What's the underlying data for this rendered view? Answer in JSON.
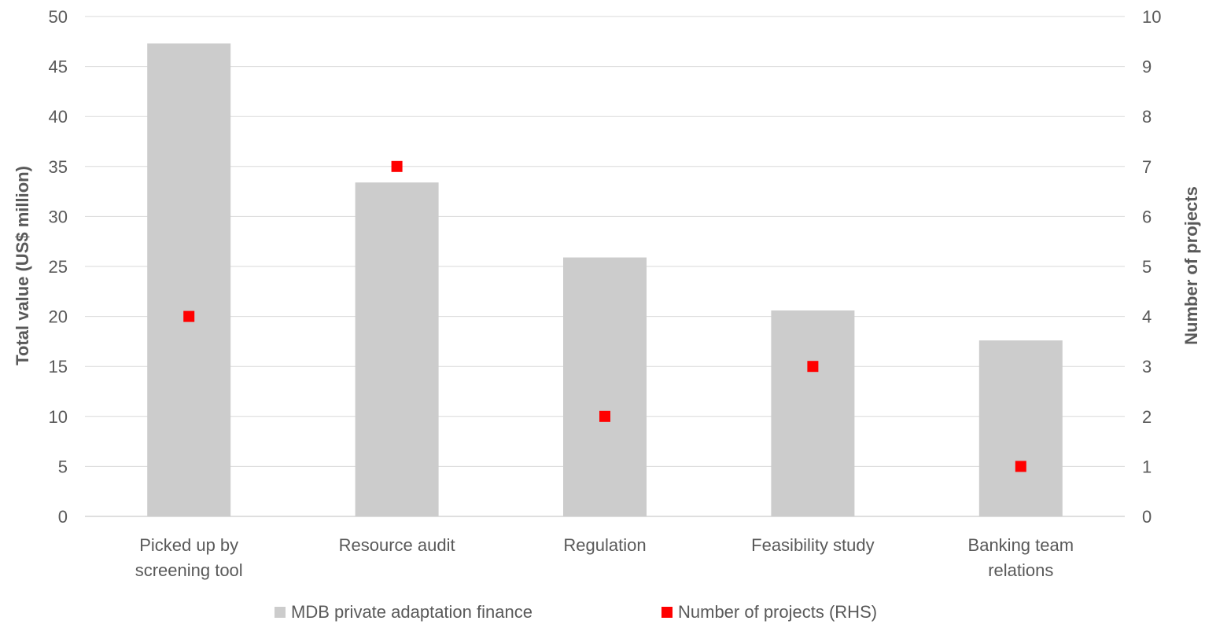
{
  "chart_data": {
    "type": "bar",
    "categories": [
      [
        "Picked up by",
        "screening tool"
      ],
      [
        "Resource audit"
      ],
      [
        "Regulation"
      ],
      [
        "Feasibility study"
      ],
      [
        "Banking team",
        "relations"
      ]
    ],
    "series": [
      {
        "name": "MDB private adaptation finance",
        "type": "bar",
        "axis": "left",
        "color": "#cccccc",
        "values": [
          47.3,
          33.4,
          25.9,
          20.6,
          17.6
        ]
      },
      {
        "name": "Number of projects (RHS)",
        "type": "scatter",
        "axis": "right",
        "color": "#ff0000",
        "values": [
          4,
          7,
          2,
          3,
          1
        ]
      }
    ],
    "ylabel": "Total value (US$ million)",
    "y2label": "Number of projects",
    "ylim": [
      0,
      50
    ],
    "y2lim": [
      0,
      10
    ],
    "yticks": [
      0,
      5,
      10,
      15,
      20,
      25,
      30,
      35,
      40,
      45,
      50
    ],
    "y2ticks": [
      0,
      1,
      2,
      3,
      4,
      5,
      6,
      7,
      8,
      9,
      10
    ],
    "grid": true,
    "legend": "bottom"
  }
}
